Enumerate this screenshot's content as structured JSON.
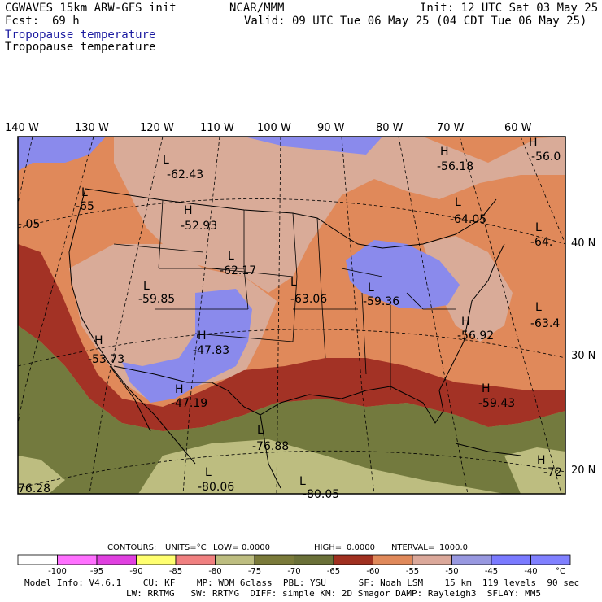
{
  "header": {
    "model": "CGWAVES 15km ARW-GFS init",
    "org": "NCAR/MMM",
    "init": "Init: 12 UTC Sat 03 May 25",
    "fcst_label": "Fcst:",
    "fcst_value": "69 h",
    "valid": "Valid: 09 UTC Tue 06 May 25 (04 CDT Tue 06 May 25)",
    "field_shaded": "Tropopause temperature",
    "field_contour": "Tropopause temperature"
  },
  "axes": {
    "lon_labels": [
      "140 W",
      "130 W",
      "120 W",
      "110 W",
      "100 W",
      "90 W",
      "80 W",
      "70 W",
      "60 W"
    ],
    "lat_labels": [
      "40 N",
      "30 N",
      "20 N"
    ]
  },
  "centers": [
    {
      "type": "L",
      "value": "-62.43"
    },
    {
      "type": "L",
      "value": "-65"
    },
    {
      "type": "H",
      "value": "-52.93"
    },
    {
      "type": "L",
      "value": "-62.17"
    },
    {
      "type": "L",
      "value": "-59.85"
    },
    {
      "type": "L",
      "value": "-63.06"
    },
    {
      "type": "L",
      "value": "-59.36"
    },
    {
      "type": "H",
      "value": "-56.18"
    },
    {
      "type": "H",
      "value": "-56.0"
    },
    {
      "type": "L",
      "value": "-64.05"
    },
    {
      "type": "L",
      "value": "-64."
    },
    {
      "type": "L",
      "value": "-63.4"
    },
    {
      "type": "H",
      "value": "-56.92"
    },
    {
      "type": "H",
      "value": "-53.73"
    },
    {
      "type": "H",
      "value": "-47.83"
    },
    {
      "type": "H",
      "value": "-47.19"
    },
    {
      "type": "L",
      "value": "-76.88"
    },
    {
      "type": "L",
      "value": "-80.06"
    },
    {
      "type": "L",
      "value": "-80.05"
    },
    {
      "type": "H",
      "value": "-59.43"
    },
    {
      "type": "H",
      "value": "-72"
    }
  ],
  "edge_values": [
    "-.05",
    "76.28"
  ],
  "contour_info": {
    "contours": "CONTOURS:",
    "units": "UNITS=°C",
    "low": "LOW=",
    "low_value": "0.0000",
    "high": "HIGH=",
    "high_value": "0.0000",
    "interval": "INTERVAL=",
    "interval_value": "1000.0"
  },
  "colorbar": {
    "colors": [
      "#ffffff",
      "#ff70ff",
      "#e040e0",
      "#ffff70",
      "#f08080",
      "#bdbd80",
      "#7a7a3a",
      "#6a7038",
      "#a03020",
      "#e0895a",
      "#dba89a",
      "#9898e0",
      "#7a7aff",
      "#8080ff"
    ],
    "labels": [
      "-100",
      "-95",
      "-90",
      "-85",
      "-80",
      "-75",
      "-70",
      "-65",
      "-60",
      "-55",
      "-50",
      "-45",
      "-40"
    ],
    "unit": "°C"
  },
  "footer": {
    "line1": "Model Info: V4.6.1    CU: KF    MP: WDM 6class  PBL: YSU      SF: Noah LSM    15 km  119 levels  90 sec",
    "line2": "LW: RRTMG   SW: RRTMG  DIFF: simple KM: 2D Smagor DAMP: Rayleigh3  SFLAY: MM5"
  },
  "map_colors": {
    "tan": "#d9ab98",
    "orange": "#e0895a",
    "red": "#a33225",
    "olive": "#737a3e",
    "khaki": "#bdbd80",
    "purple": "#8a8aec"
  }
}
